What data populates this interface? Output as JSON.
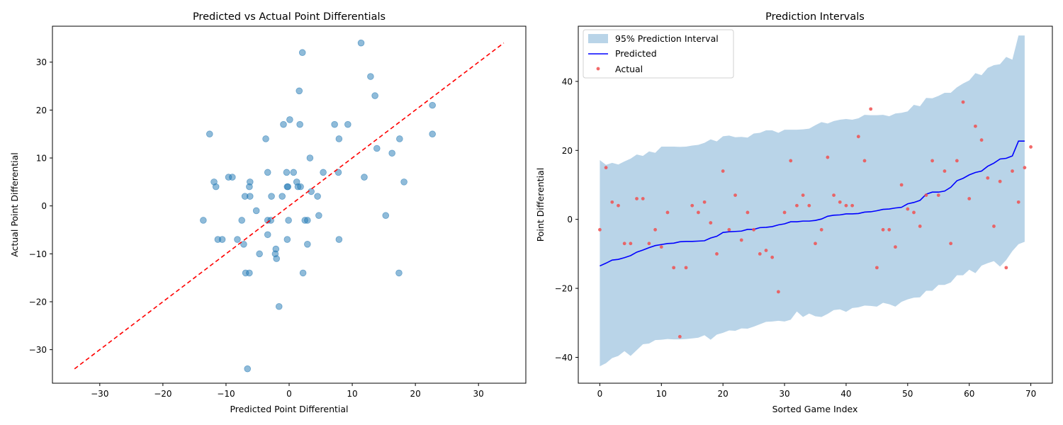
{
  "chart_data": [
    {
      "type": "scatter",
      "title": "Predicted vs Actual Point Differentials",
      "xlabel": "Predicted Point Differential",
      "ylabel": "Actual Point Differential",
      "xlim": [
        -37.5,
        37.5
      ],
      "ylim": [
        -37,
        37.5
      ],
      "xticks": [
        -30,
        -20,
        -10,
        0,
        10,
        20,
        30
      ],
      "yticks": [
        -30,
        -20,
        -10,
        0,
        10,
        20,
        30
      ],
      "xtick_labels": [
        "−30",
        "−20",
        "−10",
        "0",
        "10",
        "20",
        "30"
      ],
      "ytick_labels": [
        "−30",
        "−20",
        "−10",
        "0",
        "10",
        "20",
        "30"
      ],
      "point_color": "#1f77b4",
      "reference_line": {
        "from": [
          -34,
          -34
        ],
        "to": [
          34,
          34
        ],
        "color": "#ff0000",
        "style": "dashed"
      },
      "points": [
        [
          11.4,
          34
        ],
        [
          2.1,
          32
        ],
        [
          12.9,
          27
        ],
        [
          1.6,
          24
        ],
        [
          13.6,
          23
        ],
        [
          22.7,
          21
        ],
        [
          0.1,
          18
        ],
        [
          -0.9,
          17
        ],
        [
          1.7,
          17
        ],
        [
          7.2,
          17
        ],
        [
          9.3,
          17
        ],
        [
          -12.6,
          15
        ],
        [
          22.7,
          15
        ],
        [
          -3.7,
          14
        ],
        [
          7.9,
          14
        ],
        [
          17.5,
          14
        ],
        [
          13.9,
          12
        ],
        [
          16.3,
          11
        ],
        [
          3.3,
          10
        ],
        [
          -3.4,
          7
        ],
        [
          -0.4,
          7
        ],
        [
          0.7,
          7
        ],
        [
          5.4,
          7
        ],
        [
          7.8,
          7
        ],
        [
          -9.6,
          6
        ],
        [
          -9.0,
          6
        ],
        [
          11.9,
          6
        ],
        [
          -11.9,
          5
        ],
        [
          -6.2,
          5
        ],
        [
          1.2,
          5
        ],
        [
          18.2,
          5
        ],
        [
          -11.6,
          4
        ],
        [
          -6.3,
          4
        ],
        [
          -0.3,
          4
        ],
        [
          -0.2,
          4
        ],
        [
          1.4,
          4
        ],
        [
          1.8,
          4
        ],
        [
          3.5,
          3
        ],
        [
          -7.0,
          2
        ],
        [
          -6.2,
          2
        ],
        [
          -2.8,
          2
        ],
        [
          -1.1,
          2
        ],
        [
          4.5,
          2
        ],
        [
          -5.2,
          -1
        ],
        [
          15.3,
          -2
        ],
        [
          4.7,
          -2
        ],
        [
          -13.6,
          -3
        ],
        [
          -7.5,
          -3
        ],
        [
          -3.4,
          -3
        ],
        [
          -2.9,
          -3
        ],
        [
          -0.1,
          -3
        ],
        [
          2.5,
          -3
        ],
        [
          2.9,
          -3
        ],
        [
          -3.4,
          -6
        ],
        [
          -11.3,
          -7
        ],
        [
          -10.6,
          -7
        ],
        [
          -8.2,
          -7
        ],
        [
          -0.3,
          -7
        ],
        [
          7.9,
          -7
        ],
        [
          -7.2,
          -8
        ],
        [
          2.9,
          -8
        ],
        [
          -2.1,
          -9
        ],
        [
          -2.2,
          -10
        ],
        [
          -4.7,
          -10
        ],
        [
          -2.0,
          -11
        ],
        [
          -6.9,
          -14
        ],
        [
          -6.3,
          -14
        ],
        [
          2.2,
          -14
        ],
        [
          17.4,
          -14
        ],
        [
          -1.6,
          -21
        ],
        [
          -6.6,
          -34
        ]
      ]
    },
    {
      "type": "line",
      "title": "Prediction Intervals",
      "xlabel": "Sorted Game Index",
      "ylabel": "Point Differential",
      "xlim": [
        -3.5,
        73.5
      ],
      "ylim": [
        -47.5,
        56
      ],
      "xticks": [
        0,
        10,
        20,
        30,
        40,
        50,
        60,
        70
      ],
      "yticks": [
        -40,
        -20,
        0,
        20,
        40
      ],
      "xtick_labels": [
        "0",
        "10",
        "20",
        "30",
        "40",
        "50",
        "60",
        "70"
      ],
      "ytick_labels": [
        "−40",
        "−20",
        "0",
        "20",
        "40"
      ],
      "legend_position": "upper-left",
      "legend": [
        {
          "label": "95% Prediction Interval",
          "color": "#b9d4e8",
          "kind": "patch"
        },
        {
          "label": "Predicted",
          "color": "#0000ff",
          "kind": "line"
        },
        {
          "label": "Actual",
          "color": "#f05050",
          "kind": "marker"
        }
      ],
      "series": [
        {
          "name": "Predicted",
          "values": [
            -13.5,
            -12.7,
            -11.8,
            -11.6,
            -11.1,
            -10.5,
            -9.5,
            -8.9,
            -8.2,
            -7.6,
            -7.3,
            -7.0,
            -6.9,
            -6.5,
            -6.4,
            -6.4,
            -6.3,
            -6.2,
            -5.4,
            -4.9,
            -3.8,
            -3.6,
            -3.5,
            -3.4,
            -2.9,
            -2.9,
            -2.4,
            -2.3,
            -2.1,
            -1.6,
            -1.3,
            -0.7,
            -0.7,
            -0.5,
            -0.5,
            -0.3,
            0.1,
            0.9,
            1.2,
            1.3,
            1.6,
            1.6,
            1.7,
            2.1,
            2.2,
            2.5,
            2.9,
            3.0,
            3.3,
            3.5,
            4.5,
            4.9,
            5.5,
            7.3,
            7.9,
            7.9,
            8.2,
            9.3,
            11.2,
            11.9,
            12.9,
            13.6,
            14.0,
            15.4,
            16.3,
            17.5,
            17.7,
            18.4,
            22.7,
            22.7,
            null
          ],
          "lower": [
            -42.6,
            -41.7,
            -40.2,
            -39.6,
            -38.2,
            -39.6,
            -37.9,
            -36.2,
            -36.0,
            -35.0,
            -34.9,
            -34.7,
            -34.8,
            -34.8,
            -34.7,
            -34.5,
            -34.3,
            -33.6,
            -34.9,
            -33.4,
            -32.9,
            -32.2,
            -32.3,
            -31.6,
            -31.7,
            -31.1,
            -30.4,
            -29.7,
            -29.6,
            -29.4,
            -29.6,
            -29.1,
            -26.7,
            -28.3,
            -27.3,
            -28.1,
            -28.3,
            -27.4,
            -26.3,
            -26.1,
            -26.8,
            -25.7,
            -25.5,
            -25.0,
            -25.1,
            -25.3,
            -24.2,
            -24.6,
            -25.3,
            -23.9,
            -23.2,
            -22.7,
            -22.6,
            -20.7,
            -20.7,
            -19.0,
            -19.0,
            -18.3,
            -16.2,
            -16.2,
            -14.6,
            -15.6,
            -13.4,
            -12.7,
            -12.1,
            -13.7,
            -11.8,
            -9.2,
            -7.2,
            -6.5,
            null
          ],
          "upper": [
            17.2,
            15.8,
            16.4,
            15.9,
            16.8,
            17.6,
            18.8,
            18.4,
            19.7,
            19.3,
            21.1,
            21.1,
            21.1,
            21.0,
            21.1,
            21.4,
            21.6,
            22.2,
            23.2,
            22.6,
            24.1,
            24.3,
            23.8,
            23.9,
            23.7,
            24.9,
            25.1,
            25.8,
            25.8,
            25.1,
            26.0,
            26.0,
            26.0,
            26.1,
            26.3,
            27.3,
            28.2,
            27.8,
            28.5,
            28.9,
            29.1,
            28.9,
            29.3,
            30.3,
            30.2,
            30.2,
            30.3,
            29.9,
            30.7,
            30.9,
            31.3,
            33.2,
            32.8,
            35.2,
            35.1,
            35.8,
            36.7,
            36.7,
            38.3,
            39.4,
            40.3,
            42.4,
            41.8,
            43.9,
            44.7,
            45.0,
            47.1,
            46.3,
            53.3,
            53.3,
            null
          ]
        },
        {
          "name": "Actual",
          "x": [
            0,
            1,
            2,
            3,
            4,
            5,
            6,
            7,
            8,
            9,
            10,
            11,
            12,
            13,
            14,
            15,
            16,
            17,
            18,
            19,
            20,
            21,
            22,
            23,
            24,
            25,
            26,
            27,
            28,
            29,
            30,
            31,
            32,
            33,
            34,
            35,
            36,
            37,
            38,
            39,
            40,
            41,
            42,
            43,
            44,
            45,
            46,
            47,
            48,
            49,
            50,
            51,
            52,
            53,
            54,
            55,
            56,
            57,
            58,
            59,
            60,
            61,
            62,
            63,
            64,
            65,
            66,
            67,
            68,
            69,
            70
          ],
          "values": [
            -3,
            15,
            5,
            4,
            -7,
            -7,
            6,
            6,
            -7,
            -3,
            -8,
            2,
            -14,
            -34,
            -14,
            4,
            2,
            5,
            -1,
            -10,
            14,
            -3,
            7,
            -6,
            2,
            -3,
            -10,
            -9,
            -11,
            -21,
            2,
            17,
            4,
            7,
            4,
            -7,
            -3,
            18,
            7,
            5,
            4,
            4,
            24,
            17,
            32,
            -14,
            -3,
            -3,
            -8,
            10,
            3,
            2,
            -2,
            7,
            17,
            7,
            14,
            -7,
            17,
            34,
            6,
            27,
            23,
            12,
            -2,
            11,
            -14,
            14,
            5,
            15,
            21
          ]
        }
      ]
    }
  ]
}
